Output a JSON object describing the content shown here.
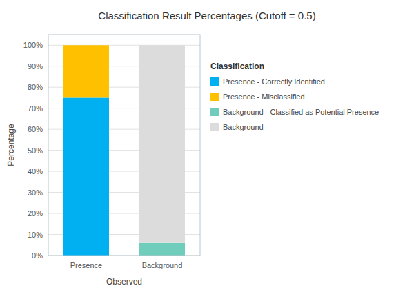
{
  "chart_data": {
    "type": "bar",
    "stacked": true,
    "title": "Classification Result Percentages (Cutoff = 0.5)",
    "xlabel": "Observed",
    "ylabel": "Percentage",
    "categories": [
      "Presence",
      "Background"
    ],
    "series": [
      {
        "name": "Presence - Correctly Identified",
        "color": "#00B0F0",
        "values": [
          75,
          0
        ]
      },
      {
        "name": "Presence - Misclassified",
        "color": "#FFC000",
        "values": [
          25,
          0
        ]
      },
      {
        "name": "Background - Classified as Potential Presence",
        "color": "#70CCBB",
        "values": [
          0,
          6
        ]
      },
      {
        "name": "Background",
        "color": "#DCDCDC",
        "values": [
          0,
          94
        ]
      }
    ],
    "ylim": [
      0,
      105
    ],
    "yticks": [
      {
        "value": 0,
        "label": "0%"
      },
      {
        "value": 10,
        "label": "10%"
      },
      {
        "value": 20,
        "label": "20%"
      },
      {
        "value": 30,
        "label": "30%"
      },
      {
        "value": 40,
        "label": "40%"
      },
      {
        "value": 50,
        "label": "50%"
      },
      {
        "value": 60,
        "label": "60%"
      },
      {
        "value": 70,
        "label": "70%"
      },
      {
        "value": 80,
        "label": "80%"
      },
      {
        "value": 90,
        "label": "90%"
      },
      {
        "value": 100,
        "label": "100%"
      }
    ],
    "grid": true,
    "legend_title": "Classification",
    "legend": "right"
  }
}
